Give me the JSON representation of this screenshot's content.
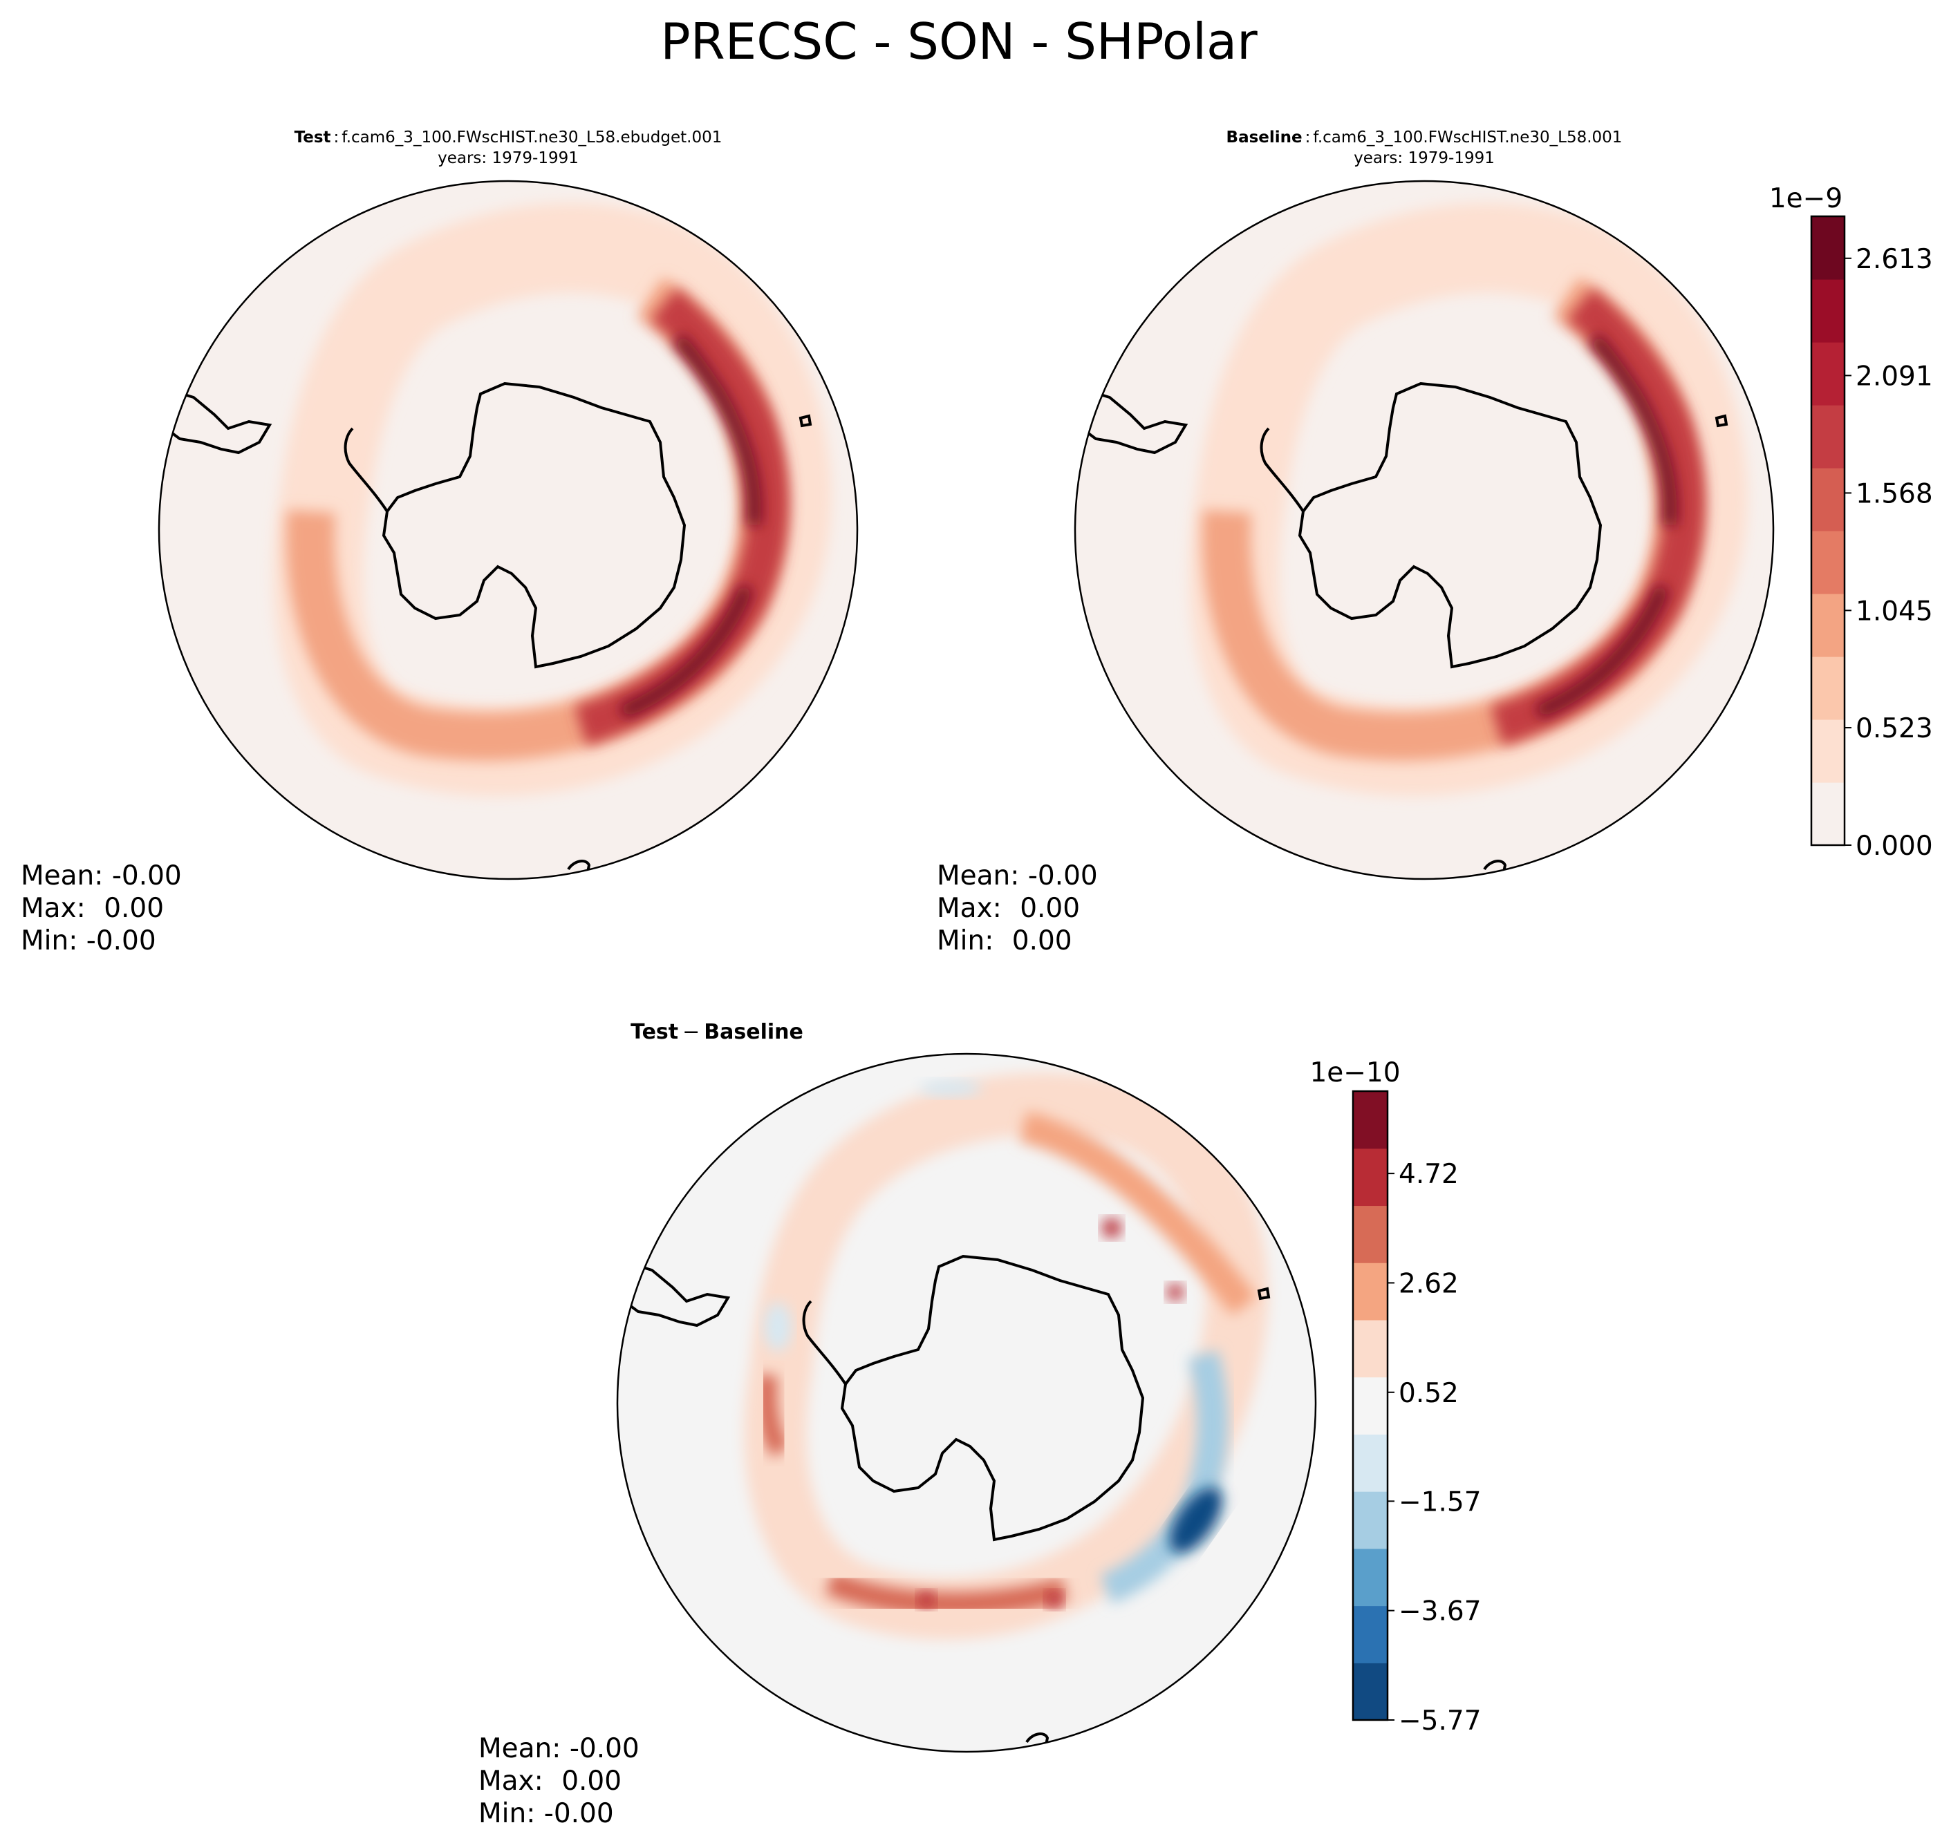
{
  "figure": {
    "title": "PRECSC - SON - SHPolar"
  },
  "chart_data": [
    {
      "type": "heatmap",
      "projection": "south polar stereographic",
      "region": "SHPolar",
      "title_label": "Test",
      "title_case": "f.cam6_3_100.FWscHIST.ne30_L58.ebudget.001",
      "title_years": "years: 1979-1991",
      "stats": {
        "mean_label": "Mean:",
        "mean": "-0.00",
        "max_label": "Max:",
        "max": "0.00",
        "min_label": "Min:",
        "min": "-0.00"
      },
      "field_max": 2.7e-09,
      "description_of_pattern": "precipitation band ringing Antarctica, peak over southern Indian Ocean sector"
    },
    {
      "type": "heatmap",
      "projection": "south polar stereographic",
      "region": "SHPolar",
      "title_label": "Baseline",
      "title_case": "f.cam6_3_100.FWscHIST.ne30_L58.001",
      "title_years": "years: 1979-1991",
      "stats": {
        "mean_label": "Mean:",
        "mean": "-0.00",
        "max_label": "Max:",
        "max": "0.00",
        "min_label": "Min:",
        "min": "0.00"
      },
      "field_max": 2.7e-09
    },
    {
      "type": "heatmap",
      "projection": "south polar stereographic",
      "region": "SHPolar",
      "title": "Test − Baseline",
      "title_bold": "Test",
      "title_bold2": "Baseline",
      "title_minus": "−",
      "stats": {
        "mean_label": "Mean:",
        "mean": "-0.00",
        "max_label": "Max:",
        "max": "0.00",
        "min_label": "Min:",
        "min": "-0.00"
      }
    }
  ],
  "colorbars": {
    "main": {
      "exponent_label": "1e−9",
      "ticks": [
        "0.000",
        "0.523",
        "1.045",
        "1.568",
        "2.091",
        "2.613"
      ],
      "tick_values": [
        0.0,
        0.523,
        1.045,
        1.568,
        2.091,
        2.613
      ],
      "vmin": 0.0,
      "vmax": 2.8,
      "n_levels": 11,
      "colors": [
        "#f7f0ed",
        "#fde0d1",
        "#fbc7ac",
        "#f3a483",
        "#e47b64",
        "#d55e52",
        "#c43d43",
        "#b52134",
        "#9b0d28",
        "#6e0720"
      ]
    },
    "diff": {
      "exponent_label": "1e−10",
      "ticks": [
        "−5.77",
        "−3.67",
        "−1.57",
        "0.52",
        "2.62",
        "4.72"
      ],
      "tick_values": [
        -5.77,
        -3.67,
        -1.57,
        0.52,
        2.62,
        4.72
      ],
      "vmin": -5.77,
      "vmax": 6.3,
      "colors": [
        "#114a82",
        "#2b72b2",
        "#5a9fcb",
        "#a6cde3",
        "#d7e8f2",
        "#f5f5f5",
        "#fbdccc",
        "#f4a581",
        "#d76b56",
        "#b82c35",
        "#810f25"
      ]
    }
  },
  "colors": {
    "background_field_main": "#f7f0ed",
    "background_field_diff": "#f4f4f4",
    "coastline": "#000000"
  }
}
